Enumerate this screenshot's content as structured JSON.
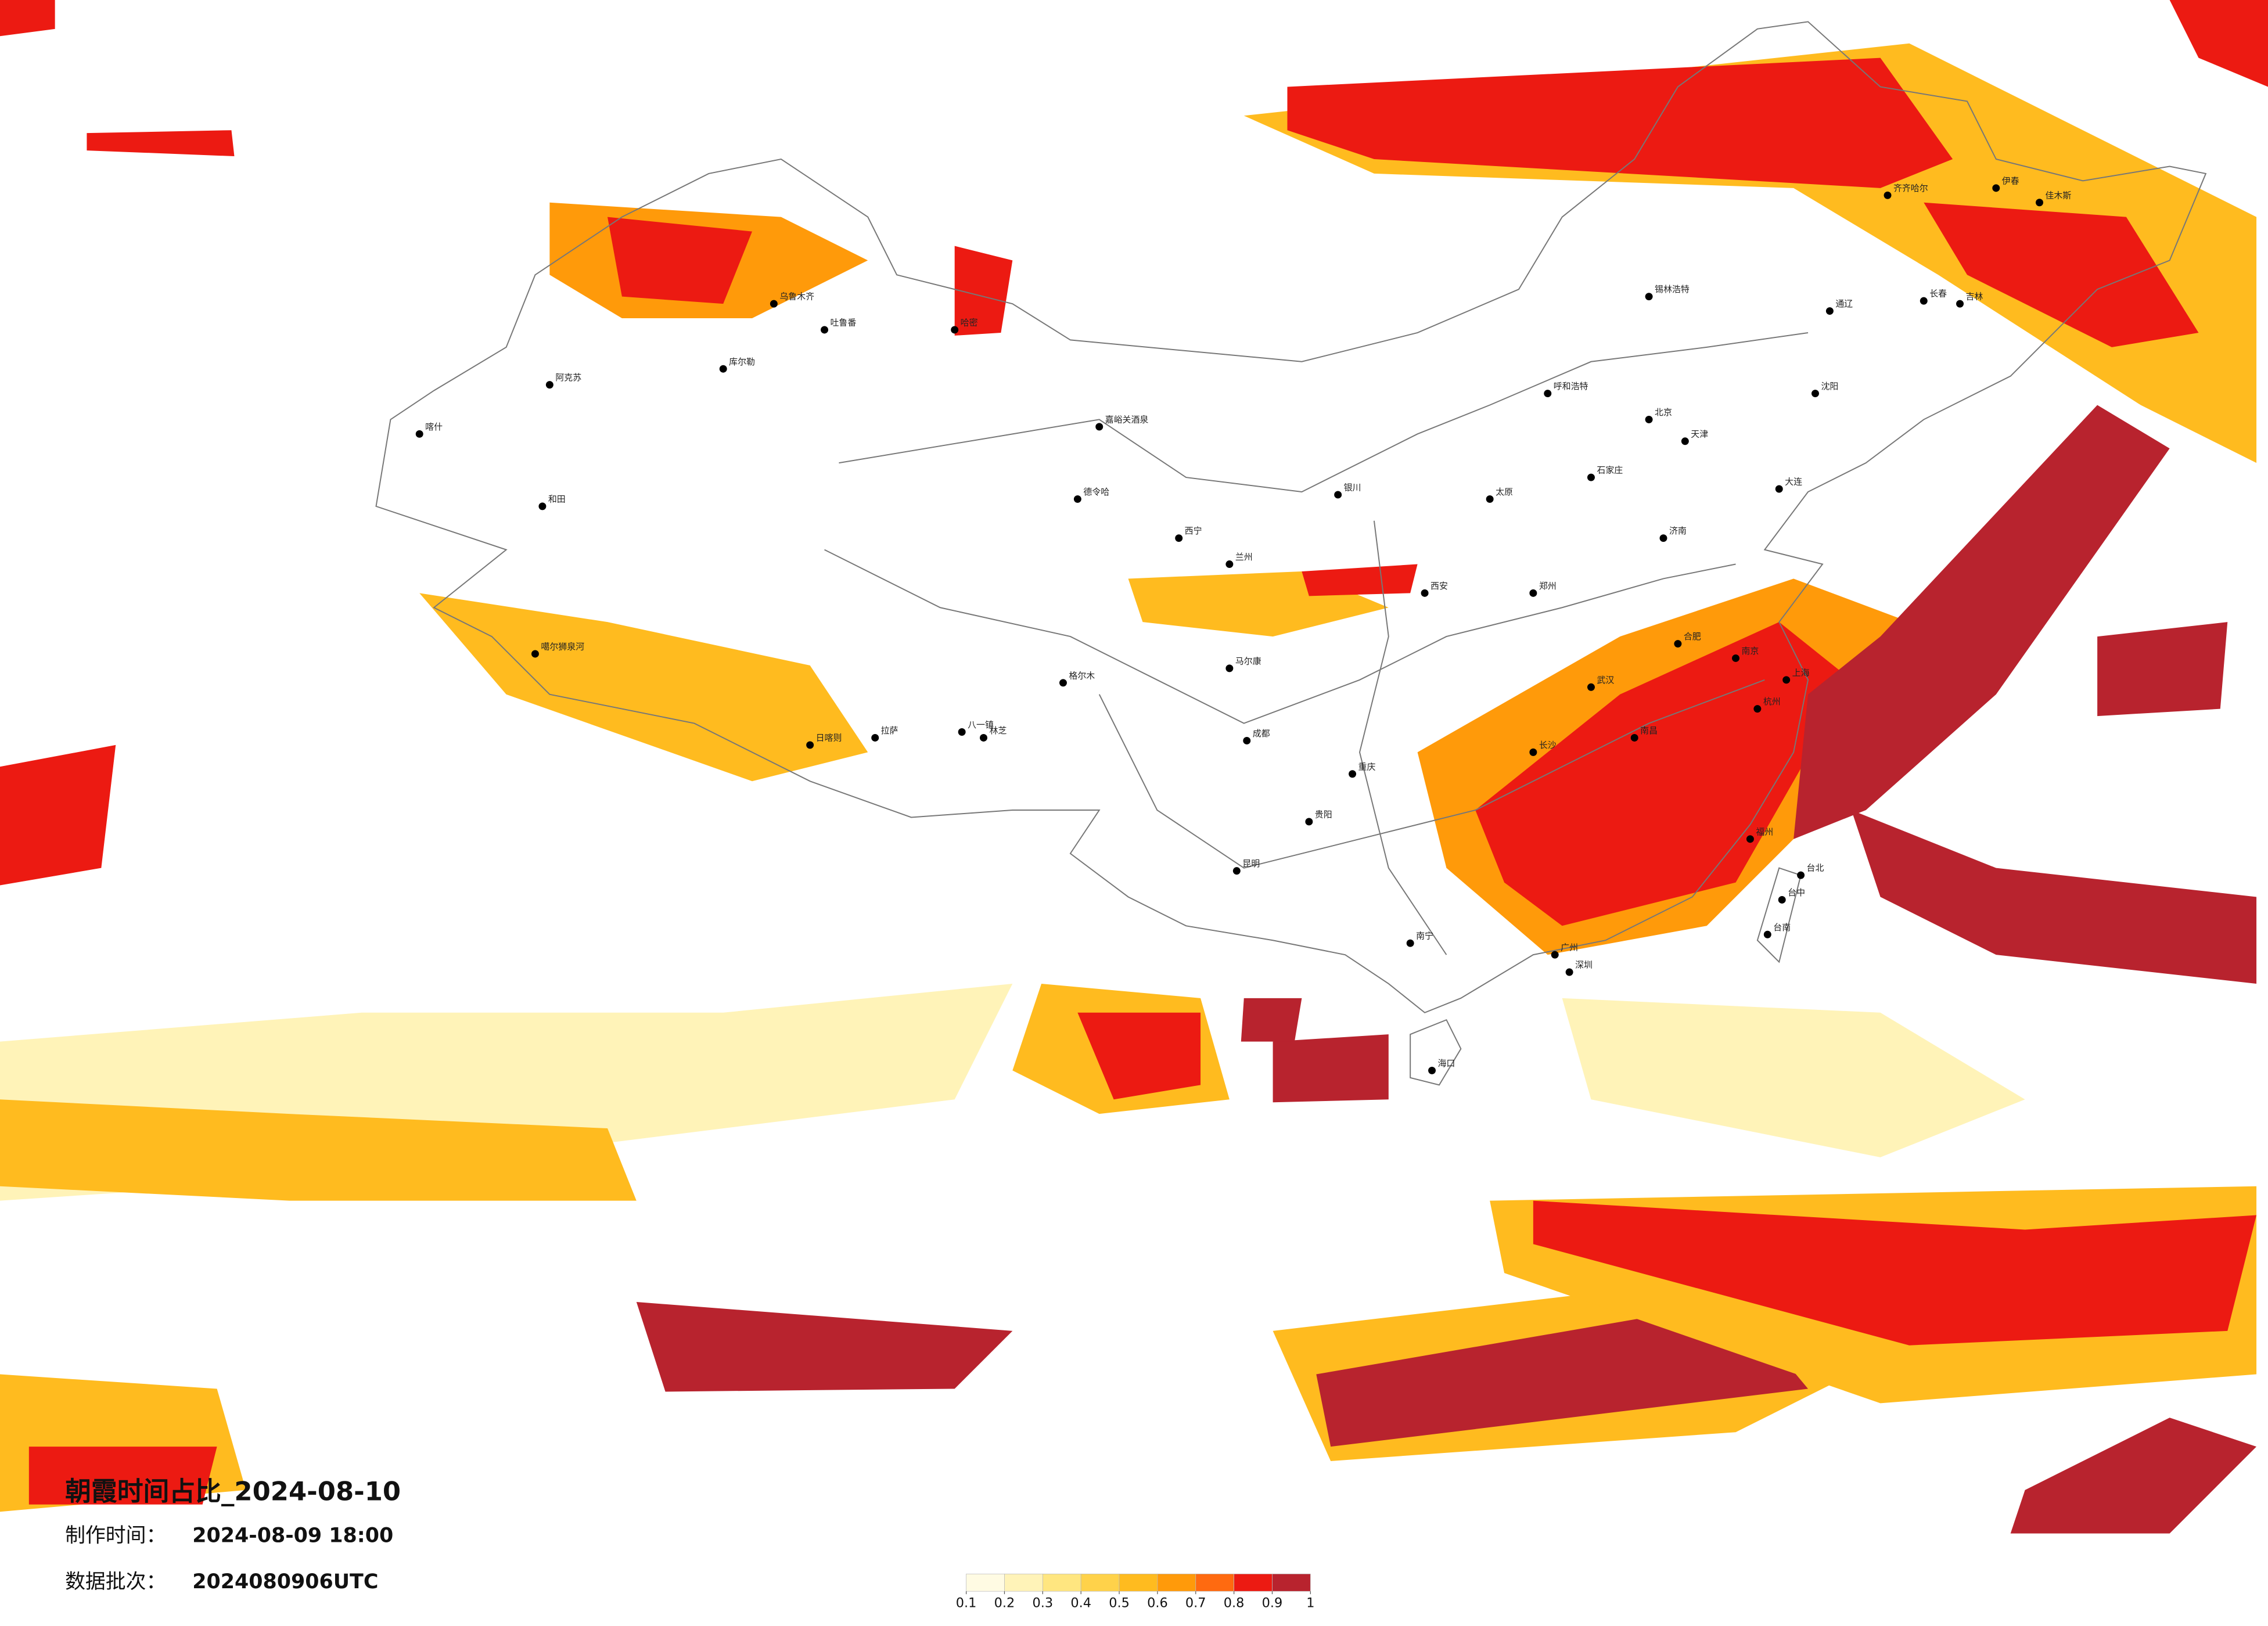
{
  "header": {
    "title": "朝霞时间占比_2024-08-10",
    "made_label": "制作时间：",
    "made_value": "2024-08-09 18:00",
    "batch_label": "数据批次：",
    "batch_value": "2024080906UTC"
  },
  "legend": {
    "colors": [
      "#fffbe3",
      "#fff3b8",
      "#ffe680",
      "#ffd24a",
      "#ffbb1f",
      "#ff9a0a",
      "#ff6a10",
      "#ec1a12",
      "#b8232e"
    ],
    "ticks": [
      0.1,
      0.2,
      0.3,
      0.4,
      0.5,
      0.6,
      0.7,
      0.8,
      0.9,
      1
    ]
  },
  "cities": [
    "北京",
    "天津",
    "石家庄",
    "太原",
    "呼和浩特",
    "济南",
    "郑州",
    "西安",
    "兰州",
    "西宁",
    "银川",
    "乌鲁木齐",
    "吐鲁番",
    "哈密",
    "库尔勒",
    "阿克苏",
    "和田",
    "喀什",
    "嘉峪关酒泉",
    "德令哈",
    "格尔木",
    "日喀则",
    "拉萨",
    "八一镇",
    "林芝",
    "马尔康",
    "成都",
    "重庆",
    "贵阳",
    "昆明",
    "南宁",
    "广州",
    "深圳",
    "海口",
    "福州",
    "台北",
    "台中",
    "台南",
    "南京",
    "上海",
    "武汉",
    "长沙",
    "南昌",
    "杭州",
    "合肥",
    "沈阳",
    "大连",
    "长春",
    "吉林",
    "齐齐哈尔",
    "佳木斯",
    "伊春",
    "通辽",
    "锡林浩特",
    "噶尔狮泉河"
  ]
}
